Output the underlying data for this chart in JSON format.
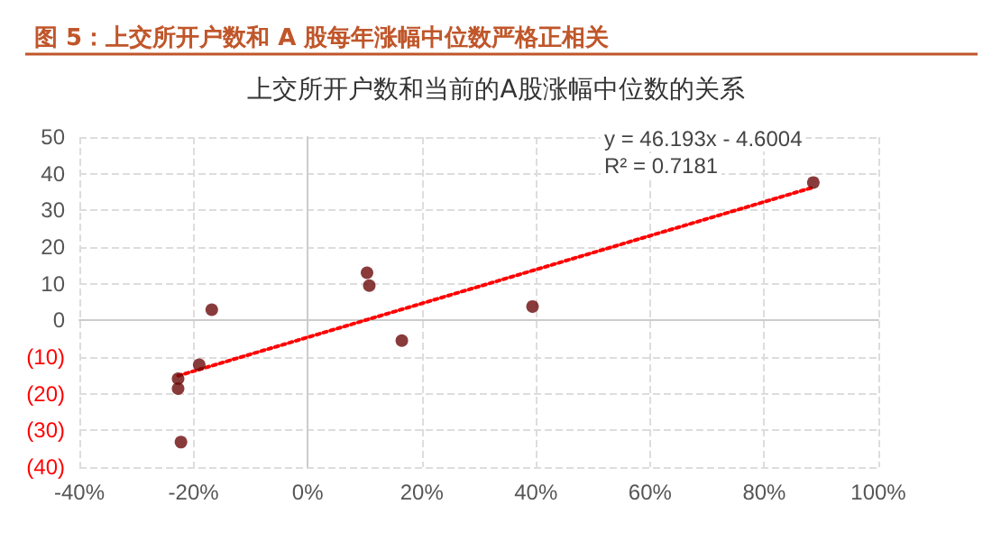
{
  "chart_data": {
    "type": "scatter",
    "title": "图 5：上交所开户数和 A 股每年涨幅中位数严格正相关",
    "subtitle": "上交所开户数和当前的A股涨幅中位数的关系",
    "series": [
      {
        "color": "#6b0a0a",
        "marker": "circle",
        "x": [
          -16.8,
          -19.0,
          -22.7,
          -22.7,
          -22.2,
          10.4,
          10.8,
          16.5,
          39.4,
          88.6
        ],
        "values": [
          2.9,
          -12.1,
          -15.9,
          -18.6,
          -33.2,
          13.0,
          9.5,
          -5.5,
          3.8,
          37.6
        ]
      },
      {
        "type": "line",
        "color": "#ff0000",
        "marker": "none",
        "line_style": "dotted",
        "x": [
          -22.7,
          88.6
        ],
        "values": [
          -15.1,
          36.3
        ]
      }
    ],
    "xlim": [
      -40,
      100
    ],
    "xticks": [
      {
        "value": -40,
        "label": "-40%"
      },
      {
        "value": -20,
        "label": "-20%"
      },
      {
        "value": 0,
        "label": "0%"
      },
      {
        "value": 20,
        "label": "20%"
      },
      {
        "value": 40,
        "label": "40%"
      },
      {
        "value": 60,
        "label": "60%"
      },
      {
        "value": 80,
        "label": "80%"
      },
      {
        "value": 100,
        "label": "100%"
      }
    ],
    "ylim": [
      -40,
      50
    ],
    "yticks": [
      {
        "value": -40,
        "label": "(40)"
      },
      {
        "value": -30,
        "label": "(30)"
      },
      {
        "value": -20,
        "label": "(20)"
      },
      {
        "value": -10,
        "label": "(10)"
      },
      0,
      10,
      20,
      30,
      40,
      50
    ],
    "annotations": [
      "y = 46.193x - 4.6004",
      "R² = 0.7181"
    ],
    "grid": true
  }
}
